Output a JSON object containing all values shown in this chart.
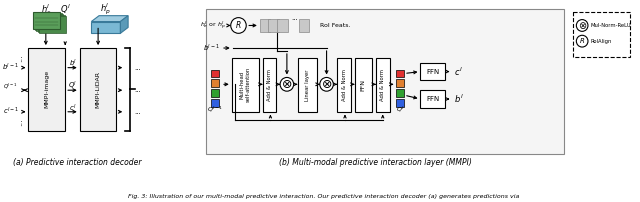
{
  "title": "Fig. 3: Illustration of our multi-modal predictive interaction. Our predictive interaction decoder (a) generates predictions via",
  "caption_a": "(a) Predictive interaction decoder",
  "caption_b": "(b) Multi-modal predictive interaction layer (MMPI)",
  "bg_color": "#ffffff",
  "fig_width": 6.4,
  "fig_height": 2.02,
  "dpi": 100,
  "colors_sq": [
    "#e03030",
    "#e08030",
    "#30a030",
    "#3060e0"
  ]
}
